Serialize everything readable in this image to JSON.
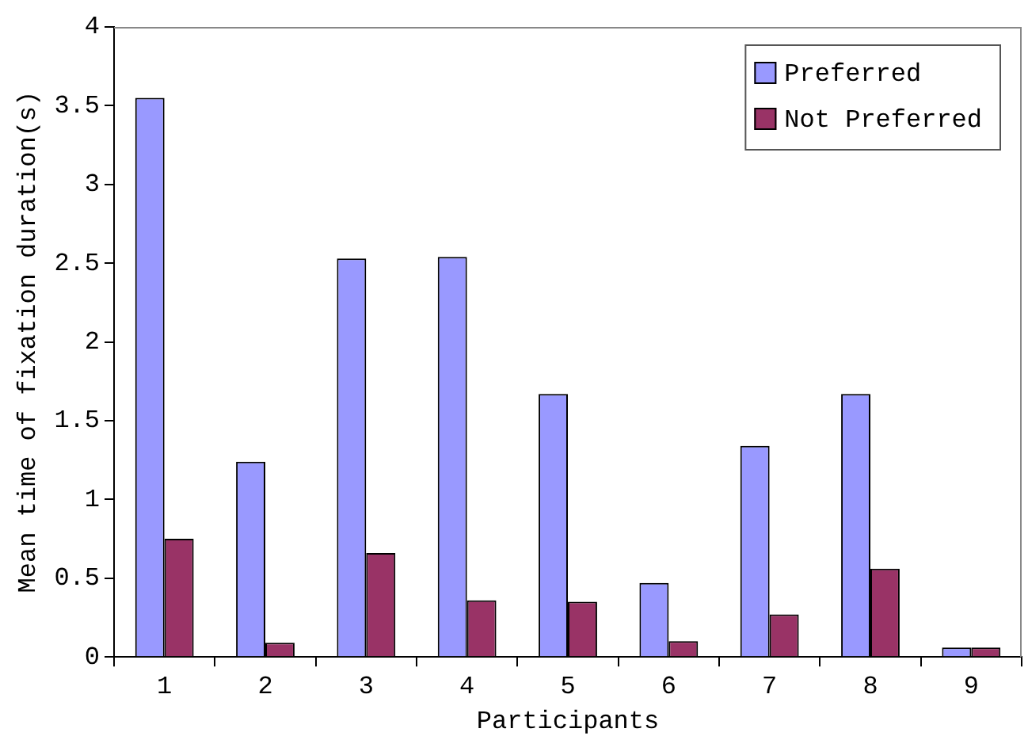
{
  "chart_data": {
    "type": "bar",
    "xlabel": "Participants",
    "ylabel": "Mean time of fixation duration(s)",
    "categories": [
      "1",
      "2",
      "3",
      "4",
      "5",
      "6",
      "7",
      "8",
      "9"
    ],
    "series": [
      {
        "name": "Preferred",
        "color": "#9999ff",
        "values": [
          3.55,
          1.24,
          2.53,
          2.54,
          1.67,
          0.47,
          1.34,
          1.67,
          0.06
        ]
      },
      {
        "name": "Not Preferred",
        "color": "#993366",
        "values": [
          0.75,
          0.09,
          0.66,
          0.36,
          0.35,
          0.1,
          0.27,
          0.56,
          0.06
        ]
      }
    ],
    "ylim": [
      0,
      4
    ],
    "yticks": [
      0,
      0.5,
      1,
      1.5,
      2,
      2.5,
      3,
      3.5,
      4
    ],
    "legend": "top right"
  }
}
